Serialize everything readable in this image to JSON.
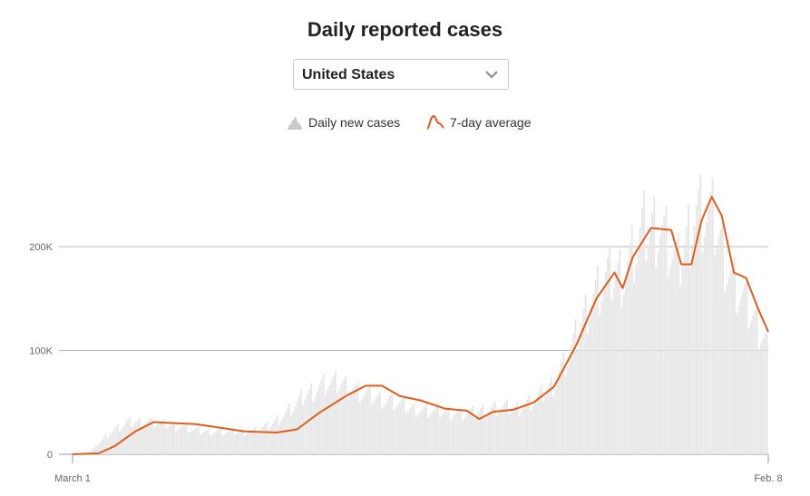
{
  "title": "Daily reported cases",
  "selector": {
    "value": "United States",
    "icon": "chevron-down-icon"
  },
  "legend": {
    "bars_label": "Daily new cases",
    "line_label": "7-day average",
    "bars_icon": "bar-chart-icon",
    "line_icon": "line-icon"
  },
  "colors": {
    "bars": "#e6e6e6",
    "line": "#e05d1a",
    "grid": "#b7b7b7",
    "axis": "#999999"
  },
  "chart_data": {
    "type": "bar",
    "title": "Daily reported cases",
    "x_tick_labels": [
      "March 1",
      "Feb. 8"
    ],
    "y_ticks": [
      0,
      100000,
      200000
    ],
    "y_tick_labels": [
      "0",
      "100K",
      "200K"
    ],
    "ylim": [
      0,
      300000
    ],
    "x_range": [
      "2020-03-01",
      "2021-02-08"
    ],
    "grid": true,
    "legend_position": "top-center",
    "series": [
      {
        "name": "Daily new cases",
        "type": "bar",
        "values_weekly": [
          0,
          3000,
          20000,
          30000,
          32000,
          29000,
          27000,
          22000,
          22000,
          21000,
          22000,
          27000,
          40000,
          56000,
          67000,
          69000,
          60000,
          54000,
          51000,
          44000,
          42000,
          41000,
          38000,
          42000,
          45000,
          44000,
          52000,
          68000,
          100000,
          145000,
          170000,
          175000,
          215000,
          220000,
          180000,
          235000,
          225000,
          170000,
          140000,
          110000
        ]
      },
      {
        "name": "7-day average",
        "type": "line",
        "values": [
          {
            "date": "2020-03-01",
            "value": 0
          },
          {
            "date": "2020-03-14",
            "value": 1000
          },
          {
            "date": "2020-03-22",
            "value": 8000
          },
          {
            "date": "2020-04-01",
            "value": 22000
          },
          {
            "date": "2020-04-10",
            "value": 31000
          },
          {
            "date": "2020-04-20",
            "value": 30000
          },
          {
            "date": "2020-05-01",
            "value": 29000
          },
          {
            "date": "2020-05-15",
            "value": 25000
          },
          {
            "date": "2020-05-25",
            "value": 22000
          },
          {
            "date": "2020-06-10",
            "value": 21000
          },
          {
            "date": "2020-06-20",
            "value": 24000
          },
          {
            "date": "2020-07-01",
            "value": 40000
          },
          {
            "date": "2020-07-15",
            "value": 57000
          },
          {
            "date": "2020-07-24",
            "value": 66000
          },
          {
            "date": "2020-08-01",
            "value": 66000
          },
          {
            "date": "2020-08-10",
            "value": 56000
          },
          {
            "date": "2020-08-20",
            "value": 52000
          },
          {
            "date": "2020-09-01",
            "value": 44000
          },
          {
            "date": "2020-09-12",
            "value": 42000
          },
          {
            "date": "2020-09-18",
            "value": 34000
          },
          {
            "date": "2020-09-25",
            "value": 41000
          },
          {
            "date": "2020-10-05",
            "value": 43000
          },
          {
            "date": "2020-10-15",
            "value": 50000
          },
          {
            "date": "2020-10-25",
            "value": 65000
          },
          {
            "date": "2020-11-05",
            "value": 105000
          },
          {
            "date": "2020-11-15",
            "value": 150000
          },
          {
            "date": "2020-11-24",
            "value": 175000
          },
          {
            "date": "2020-11-28",
            "value": 160000
          },
          {
            "date": "2020-12-03",
            "value": 190000
          },
          {
            "date": "2020-12-12",
            "value": 218000
          },
          {
            "date": "2020-12-22",
            "value": 216000
          },
          {
            "date": "2020-12-27",
            "value": 183000
          },
          {
            "date": "2021-01-01",
            "value": 183000
          },
          {
            "date": "2021-01-06",
            "value": 225000
          },
          {
            "date": "2021-01-11",
            "value": 248000
          },
          {
            "date": "2021-01-16",
            "value": 230000
          },
          {
            "date": "2021-01-22",
            "value": 175000
          },
          {
            "date": "2021-01-28",
            "value": 170000
          },
          {
            "date": "2021-02-03",
            "value": 140000
          },
          {
            "date": "2021-02-08",
            "value": 118000
          }
        ]
      }
    ]
  }
}
